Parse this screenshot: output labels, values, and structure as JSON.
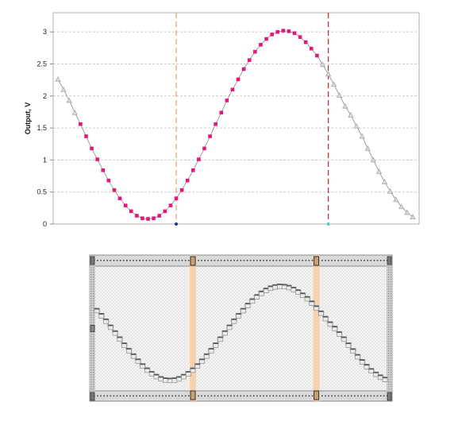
{
  "chart_data": {
    "type": "line",
    "title": "",
    "xlabel": "",
    "ylabel": "Output, V",
    "ylim": [
      0,
      3.3
    ],
    "yticks": [
      "0",
      "0.5",
      "1",
      "1.5",
      "2",
      "2.5",
      "3"
    ],
    "ytick_values": [
      0,
      0.5,
      1,
      1.5,
      2,
      2.5,
      3
    ],
    "grid": true,
    "x": [
      0,
      1,
      2,
      3,
      4,
      5,
      6,
      7,
      8,
      9,
      10,
      11,
      12,
      13,
      14,
      15,
      16,
      17,
      18,
      19,
      20,
      21,
      22,
      23,
      24,
      25,
      26,
      27,
      28,
      29,
      30,
      31,
      32,
      33,
      34,
      35,
      36,
      37,
      38,
      39,
      40,
      41,
      42,
      43,
      44,
      45,
      46,
      47,
      48,
      49,
      50,
      51,
      52,
      53,
      54,
      55,
      56,
      57,
      58,
      59,
      60,
      61,
      62,
      63
    ],
    "series": [
      {
        "values": [
          2.26,
          2.1,
          1.93,
          1.74,
          1.56,
          1.37,
          1.18,
          1.01,
          0.84,
          0.68,
          0.53,
          0.4,
          0.29,
          0.2,
          0.13,
          0.09,
          0.08,
          0.09,
          0.13,
          0.2,
          0.29,
          0.4,
          0.53,
          0.68,
          0.84,
          1.01,
          1.18,
          1.37,
          1.56,
          1.74,
          1.93,
          2.1,
          2.26,
          2.42,
          2.56,
          2.69,
          2.8,
          2.89,
          2.96,
          3.0,
          3.02,
          3.01,
          2.98,
          2.92,
          2.84,
          2.74,
          2.63,
          2.49,
          2.34,
          2.18,
          2.01,
          1.84,
          1.7,
          1.53,
          1.37,
          1.18,
          1.0,
          0.82,
          0.66,
          0.51,
          0.38,
          0.27,
          0.18,
          0.11
        ]
      }
    ],
    "selection_start_index": 4,
    "selection_end_index": 46,
    "cursor_a_index": 21,
    "cursor_b_index": 48,
    "colors": {
      "selected_marker": "#e8157a",
      "unselected_marker": "#a8a8a8",
      "line": "#888888",
      "cursor_a": "#e8a080",
      "cursor_b": "#c03040",
      "grid": "#cccccc"
    }
  },
  "slider": {
    "selection_start_index": 0,
    "selection_end_index": 63,
    "cursor_a_index": 21,
    "cursor_b_index": 48,
    "colors": {
      "frame": "#999999",
      "cursor_band": "#f9c896",
      "step": "#8a8a8a"
    }
  }
}
